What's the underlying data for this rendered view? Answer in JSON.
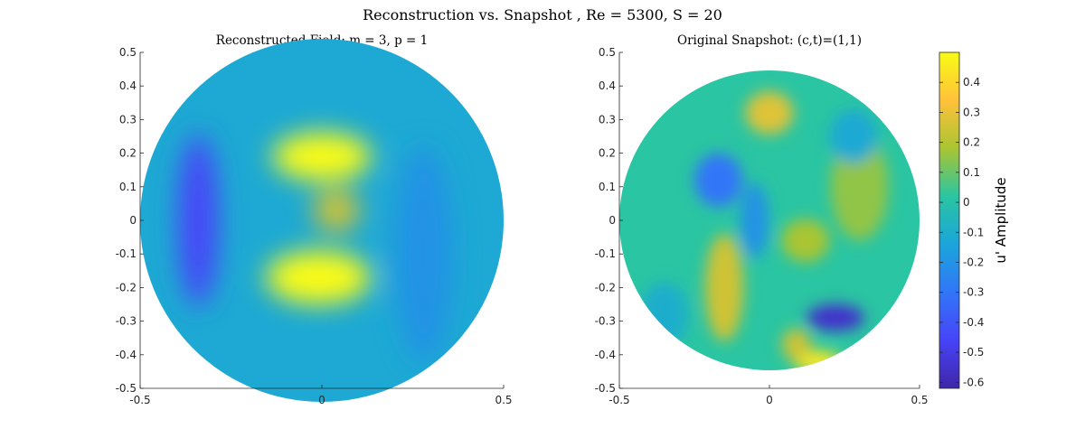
{
  "title": "Reconstruction vs. Snapshot , Re = 5300, S = 20",
  "chart_data": [
    {
      "type": "heatmap",
      "title": "Reconstructed Field: m = 3, p = 1",
      "xlim": [
        -0.5,
        0.5
      ],
      "ylim": [
        -0.5,
        0.5
      ],
      "x_ticks": [
        "-0.5",
        "0",
        "0.5"
      ],
      "y_ticks": [
        "0.5",
        "0.4",
        "0.3",
        "0.2",
        "0.1",
        "0",
        "-0.1",
        "-0.2",
        "-0.3",
        "-0.4",
        "-0.5"
      ],
      "domain": "circle of radius 0.5 centred at (0, 0)",
      "background_value": -0.12,
      "features": [
        {
          "x": 0.0,
          "y": 0.19,
          "sx": 0.085,
          "sy": 0.045,
          "value": 0.55
        },
        {
          "x": -0.01,
          "y": -0.17,
          "sx": 0.09,
          "sy": 0.05,
          "value": 0.55
        },
        {
          "x": 0.04,
          "y": 0.03,
          "sx": 0.04,
          "sy": 0.04,
          "value": 0.25
        },
        {
          "x": -0.34,
          "y": 0.0,
          "sx": 0.035,
          "sy": 0.16,
          "value": -0.45
        },
        {
          "x": 0.28,
          "y": -0.1,
          "sx": 0.05,
          "sy": 0.2,
          "value": -0.2
        }
      ]
    },
    {
      "type": "heatmap",
      "title": "Original Snapshot: (c,t)=(1,1)",
      "xlim": [
        -0.5,
        0.5
      ],
      "ylim": [
        -0.5,
        0.5
      ],
      "x_ticks": [
        "-0.5",
        "0",
        "0.5"
      ],
      "y_ticks": [
        "0.5",
        "0.4",
        "0.3",
        "0.2",
        "0.1",
        "0",
        "-0.1",
        "-0.2",
        "-0.3",
        "-0.4",
        "-0.5"
      ],
      "domain": "circle of radius 0.5 centred at (0, 0)",
      "background_value": 0.02,
      "features": [
        {
          "x": -0.17,
          "y": 0.12,
          "sx": 0.05,
          "sy": 0.05,
          "value": -0.3
        },
        {
          "x": 0.22,
          "y": -0.29,
          "sx": 0.06,
          "sy": 0.025,
          "value": -0.55
        },
        {
          "x": 0.16,
          "y": -0.42,
          "sx": 0.05,
          "sy": 0.02,
          "value": 0.45
        },
        {
          "x": 0.09,
          "y": -0.37,
          "sx": 0.03,
          "sy": 0.03,
          "value": 0.25
        },
        {
          "x": -0.15,
          "y": -0.2,
          "sx": 0.04,
          "sy": 0.1,
          "value": 0.25
        },
        {
          "x": 0.0,
          "y": 0.32,
          "sx": 0.05,
          "sy": 0.04,
          "value": 0.28
        },
        {
          "x": 0.3,
          "y": 0.1,
          "sx": 0.06,
          "sy": 0.1,
          "value": 0.15
        },
        {
          "x": -0.05,
          "y": 0.0,
          "sx": 0.03,
          "sy": 0.07,
          "value": -0.2
        },
        {
          "x": 0.28,
          "y": 0.25,
          "sx": 0.05,
          "sy": 0.05,
          "value": -0.12
        },
        {
          "x": -0.35,
          "y": -0.28,
          "sx": 0.05,
          "sy": 0.06,
          "value": -0.1
        },
        {
          "x": 0.12,
          "y": -0.06,
          "sx": 0.05,
          "sy": 0.04,
          "value": 0.18
        }
      ]
    }
  ],
  "colorbar": {
    "label": "u' Amplitude",
    "clim": [
      -0.62,
      0.5
    ],
    "ticks": [
      "0.4",
      "0.3",
      "0.2",
      "0.1",
      "0",
      "-0.1",
      "-0.2",
      "-0.3",
      "-0.4",
      "-0.5",
      "-0.6"
    ],
    "tick_values": [
      0.4,
      0.3,
      0.2,
      0.1,
      0,
      -0.1,
      -0.2,
      -0.3,
      -0.4,
      -0.5,
      -0.6
    ],
    "colormap": "parula",
    "colormap_stops": [
      "#3e26a8",
      "#4743f8",
      "#3176f8",
      "#1ba5da",
      "#2ac5a2",
      "#a9c532",
      "#ffc13a",
      "#f9fb15"
    ]
  }
}
